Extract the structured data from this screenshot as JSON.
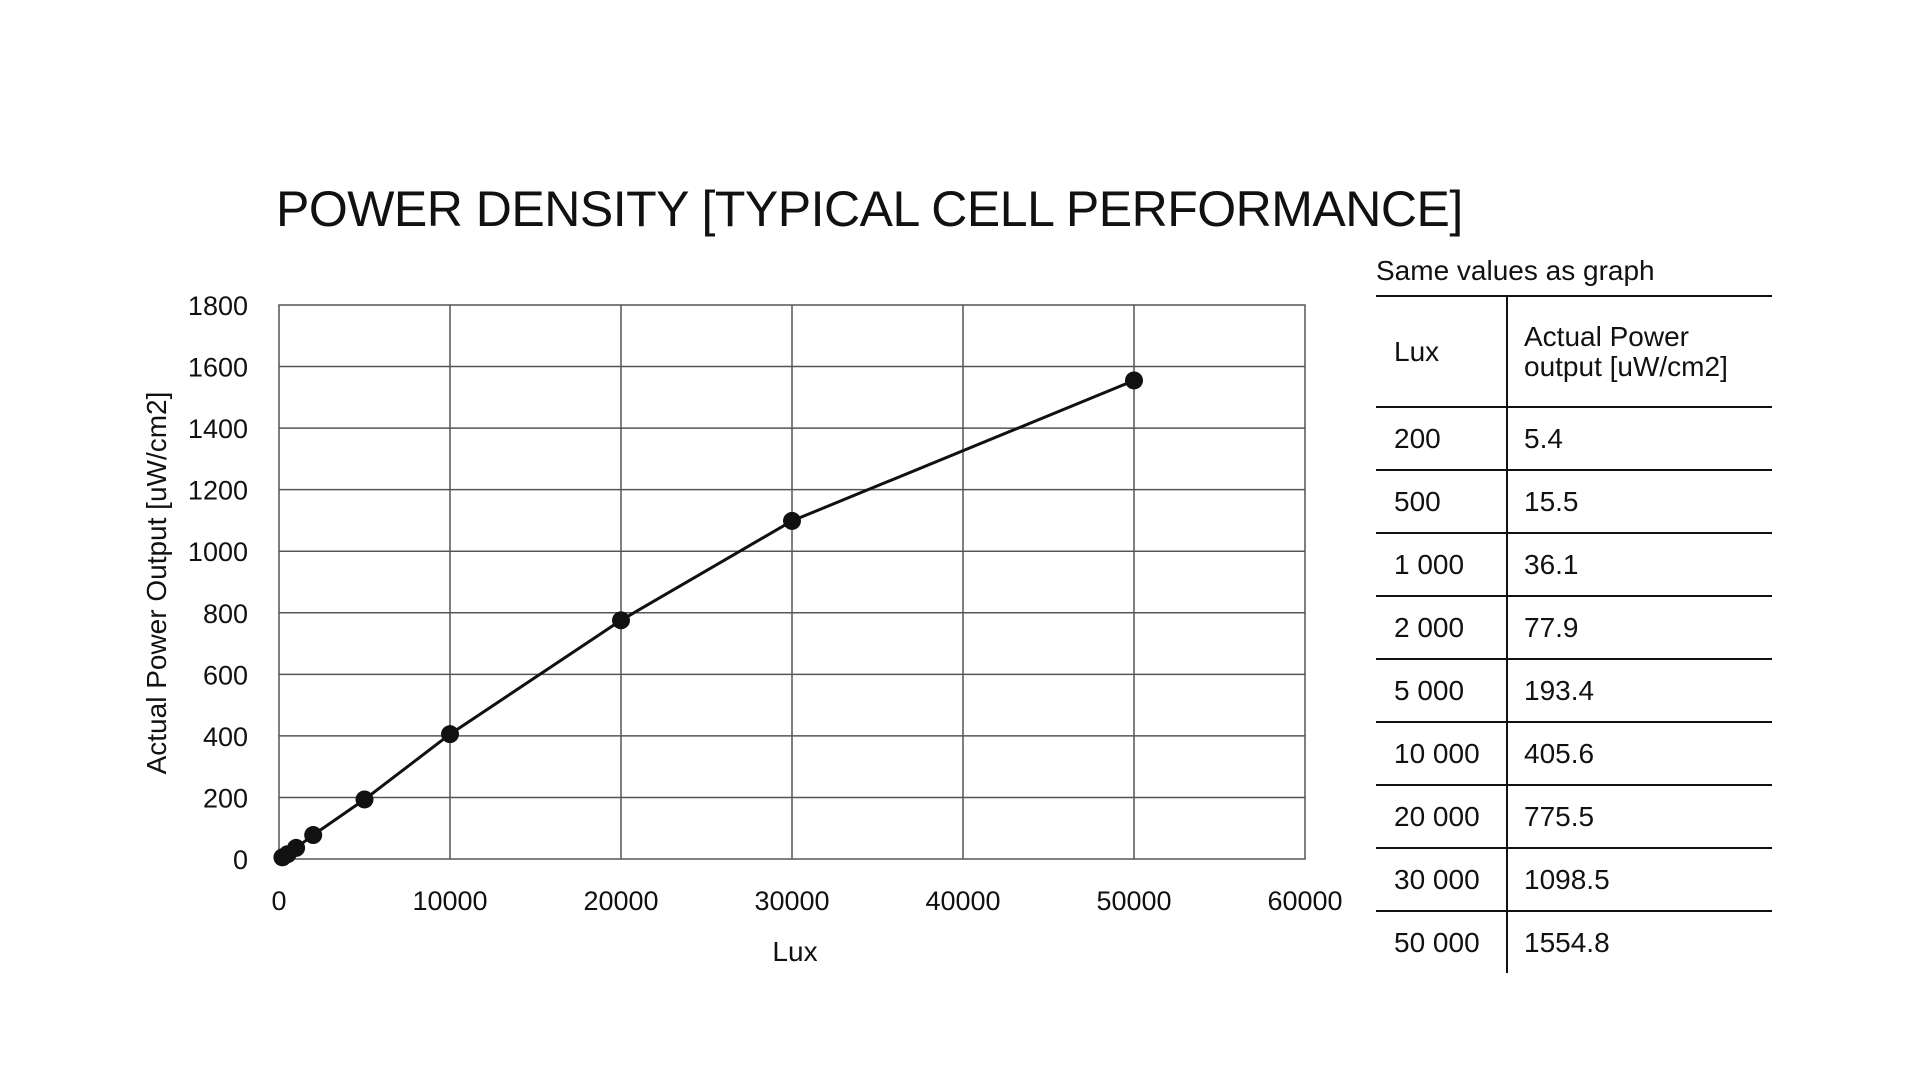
{
  "colors": {
    "line": "#111111",
    "grid": "#555555",
    "text": "#111111"
  },
  "chart_data": {
    "type": "line",
    "title": "POWER DENSITY [TYPICAL CELL PERFORMANCE]",
    "xlabel": "Lux",
    "ylabel": "Actual Power Output [uW/cm2]",
    "xlim": [
      0,
      60000
    ],
    "ylim": [
      0,
      1800
    ],
    "x_ticks": [
      "0",
      "10000",
      "20000",
      "30000",
      "40000",
      "50000",
      "60000"
    ],
    "y_ticks": [
      "0",
      "200",
      "400",
      "600",
      "800",
      "1000",
      "1200",
      "1400",
      "1600",
      "1800"
    ],
    "grid": true,
    "legend": "none",
    "series": [
      {
        "x": [
          200,
          500,
          1000,
          2000,
          5000,
          10000,
          20000,
          30000,
          50000
        ],
        "y": [
          5.4,
          15.5,
          36.1,
          77.9,
          193.4,
          405.6,
          775.5,
          1098.5,
          1554.8
        ],
        "marker": "circle"
      }
    ]
  },
  "table": {
    "caption": "Same values as graph",
    "header_lux": "Lux",
    "header_power_line1": "Actual Power",
    "header_power_line2": "output [uW/cm2]",
    "rows": [
      {
        "lux": "200",
        "power": "5.4"
      },
      {
        "lux": "500",
        "power": "15.5"
      },
      {
        "lux": "1 000",
        "power": "36.1"
      },
      {
        "lux": "2 000",
        "power": "77.9"
      },
      {
        "lux": "5 000",
        "power": "193.4"
      },
      {
        "lux": "10 000",
        "power": "405.6"
      },
      {
        "lux": "20 000",
        "power": "775.5"
      },
      {
        "lux": "30 000",
        "power": "1098.5"
      },
      {
        "lux": "50 000",
        "power": "1554.8"
      }
    ]
  }
}
